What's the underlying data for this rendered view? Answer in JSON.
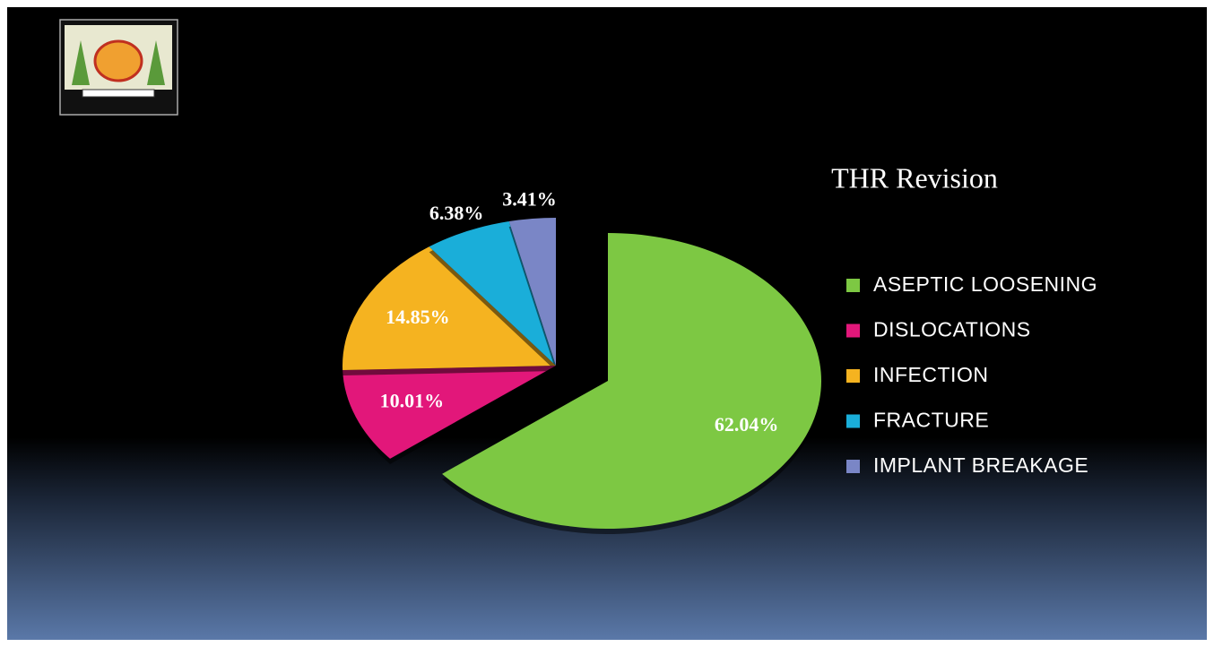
{
  "chart_data": {
    "type": "pie",
    "title": "THR Revision",
    "categories": [
      "ASEPTIC LOOSENING",
      "DISLOCATIONS",
      "INFECTION",
      "FRACTURE",
      "IMPLANT BREAKAGE"
    ],
    "values": [
      62.04,
      10.01,
      14.85,
      6.38,
      3.41
    ],
    "value_labels": [
      "62.04%",
      "10.01%",
      "14.85%",
      "6.38%",
      "3.41%"
    ],
    "colors": [
      "#7dc843",
      "#e2177a",
      "#f5b320",
      "#1aaed9",
      "#7a86c6"
    ],
    "legend": "right"
  }
}
